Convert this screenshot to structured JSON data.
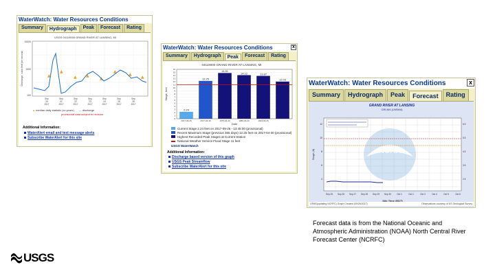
{
  "window_title": "WaterWatch: Water Resources Conditions",
  "tabs": [
    "Summary",
    "Hydrograph",
    "Peak",
    "Forecast",
    "Rating"
  ],
  "panel1": {
    "chart_title": "USGS 04119000 GRAND RIVER AT LANSING, MI",
    "legend_1": "median daily statistic (xx years)",
    "legend_2": "discharge",
    "legend_3": "provisional data subject to revision",
    "additional_info_label": "Additional Information:",
    "links": [
      "WaterAlert email and text message alerts",
      "Subscribe WaterAlert for this site"
    ]
  },
  "panel2": {
    "chart_title": "04119000 GRAND RIVER AT LANSING, MI",
    "chart_data": {
      "type": "bar",
      "categories": [
        "2017-09-26",
        "2017-04-30",
        "1975-04-20",
        "1980-03-20",
        "1904-03-26"
      ],
      "values": [
        2.24,
        12.25,
        14.81,
        14.12,
        13.87
      ],
      "value_labels": [
        "2.24",
        "12.25",
        "14.81",
        "14.12",
        "13.87"
      ],
      "extra_bar": {
        "value": 12.03,
        "label": "12.03"
      },
      "flood_stage": 11,
      "ylim": [
        0,
        16
      ],
      "ylabel": "Stage, feet",
      "xlabel": "Date",
      "yticks": [
        "16",
        "15",
        "14",
        "13",
        "12",
        "11",
        "10",
        "9",
        "8",
        "7",
        "6",
        "5",
        "4",
        "3",
        "2",
        "1",
        "0"
      ]
    },
    "legend": [
      {
        "text": "Current Stage 2.24 feet on 2017-09-26 - 13:45:00 (provisional)",
        "color": "#55aaee"
      },
      {
        "text": "Recent Maximum Stage (previous 365 days) 12.25 feet on 2017-04-30 (provisional)",
        "color": "#2255cc"
      },
      {
        "text": "Highest Recorded Peak Stages at Current Station",
        "color": "#12127a"
      },
      {
        "text": "National Weather Service Flood Stage 11 feet",
        "color": "#cc1111"
      }
    ],
    "usgs_watermark": "USGS WaterWatch",
    "additional_info_label": "Additional Information:",
    "links": [
      "Discharge based version of this graph",
      "USGS Peak Streamflow",
      "Subscribe WaterAlert for this site"
    ]
  },
  "panel3": {
    "chart_title": "GRAND RIVER AT LANSING",
    "subtitle": "GRLM4 (LNSM4)",
    "watermark_text": "NOAA",
    "xlabel": "Site Time (EDT)",
    "legend_observed": "Observed",
    "footer_left": "LRMS(updating NCRFC) Graph Created (09/26/2017)",
    "footer_right": "Observations courtesy of US Geological Survey",
    "dates": [
      "Sep 25",
      "Sep 26",
      "Sep 27",
      "Sep 28",
      "Sep 29",
      "Sep 30",
      "Oct 1",
      "Oct 2",
      "Oct 3",
      "Oct 4",
      "Oct 5",
      "Oct 6"
    ],
    "ylabel": "Stage (ft)"
  },
  "caption": "Forecast data is from the National Oceanic and Atmospheric Administration (NOAA) North Central River Forecast Center (NCRFC)",
  "logo_text": "USGS"
}
